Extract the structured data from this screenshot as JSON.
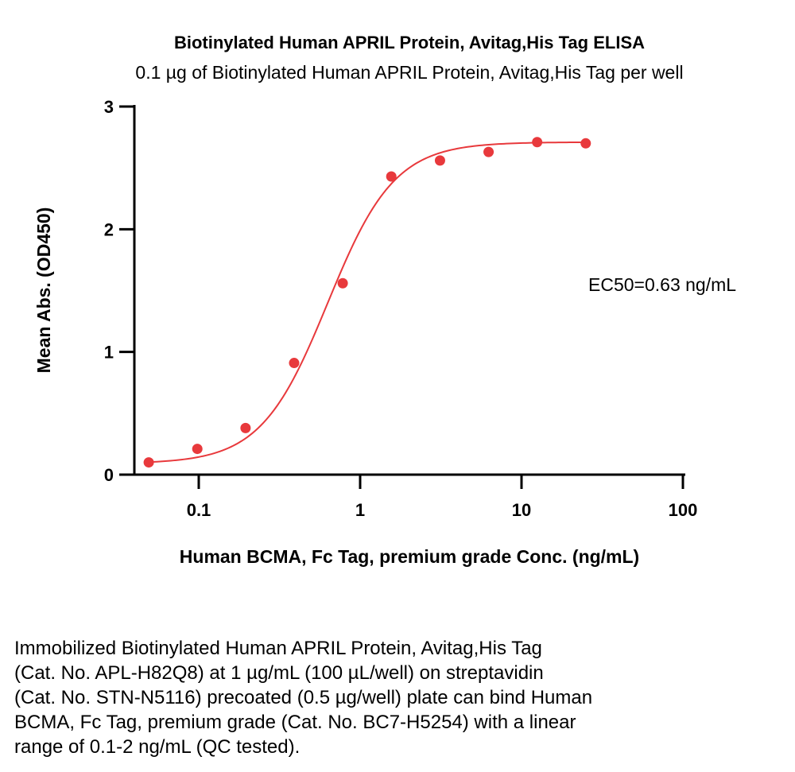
{
  "chart_data": {
    "type": "scatter",
    "title": "Biotinylated Human APRIL Protein, Avitag,His Tag ELISA",
    "subtitle": "0.1 µg of Biotinylated Human APRIL Protein, Avitag,His Tag per well",
    "xlabel": "Human BCMA, Fc Tag, premium grade Conc. (ng/mL)",
    "ylabel": "Mean Abs. (OD450)",
    "x_scale": "log",
    "xlim": [
      0.04,
      100
    ],
    "ylim": [
      0,
      3
    ],
    "x_ticks": [
      0.1,
      1,
      10,
      100
    ],
    "x_tick_labels": [
      "0.1",
      "1",
      "10",
      "100"
    ],
    "y_ticks": [
      0,
      1,
      2,
      3
    ],
    "y_tick_labels": [
      "0",
      "1",
      "2",
      "3"
    ],
    "grid": false,
    "legend": "none",
    "color": "#e8393c",
    "series": [
      {
        "x": [
          0.049,
          0.098,
          0.195,
          0.39,
          0.78,
          1.56,
          3.125,
          6.25,
          12.5,
          25
        ],
        "y": [
          0.1,
          0.21,
          0.38,
          0.91,
          1.56,
          2.43,
          2.56,
          2.63,
          2.71,
          2.7
        ]
      }
    ],
    "fit": {
      "model": "4PL",
      "bottom": 0.09,
      "top": 2.71,
      "ec50": 0.63,
      "hill": 2.1
    },
    "annotations": [
      "EC50=0.63 ng/mL"
    ]
  },
  "caption": [
    "Immobilized Biotinylated Human APRIL Protein, Avitag,His Tag",
    "(Cat. No. APL-H82Q8) at 1 µg/mL (100 µL/well) on streptavidin",
    "(Cat. No. STN-N5116) precoated (0.5 µg/well) plate can bind Human",
    "BCMA, Fc Tag, premium grade (Cat. No. BC7-H5254) with a linear",
    "range of 0.1-2 ng/mL (QC tested)."
  ]
}
